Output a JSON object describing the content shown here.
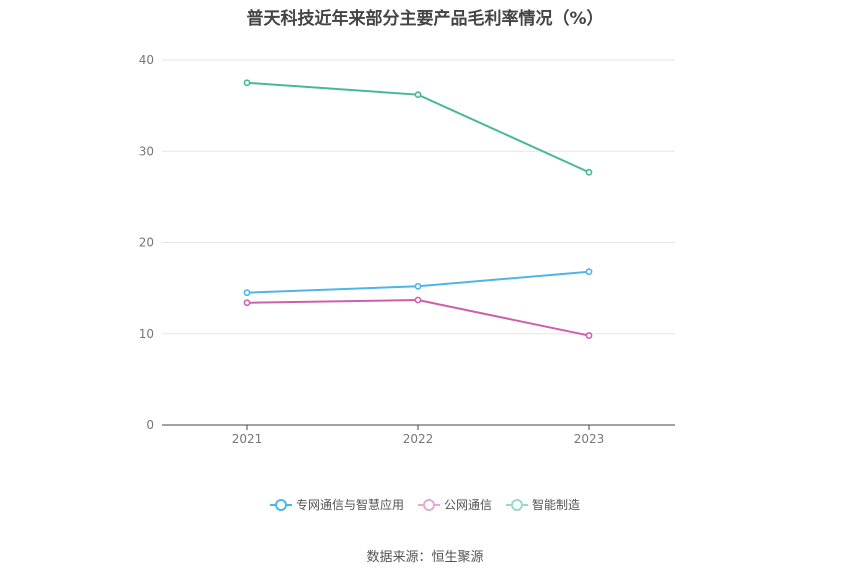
{
  "chart_data": {
    "type": "line",
    "title": "普天科技近年来部分主要产品毛利率情况（%）",
    "categories": [
      "2021",
      "2022",
      "2023"
    ],
    "ylim": [
      0,
      40
    ],
    "yticks": [
      0,
      10,
      20,
      30,
      40
    ],
    "grid": true,
    "legend_position": "bottom",
    "series": [
      {
        "name": "专网通信与智慧应用",
        "color": "#4eb5ea",
        "values": [
          14.5,
          15.2,
          16.8
        ]
      },
      {
        "name": "公网通信",
        "color": "#cf5fab",
        "values": [
          13.4,
          13.7,
          9.8
        ]
      },
      {
        "name": "智能制造",
        "color": "#47b897",
        "values": [
          37.5,
          36.2,
          27.7
        ]
      }
    ]
  },
  "source_label": "数据来源：恒生聚源"
}
